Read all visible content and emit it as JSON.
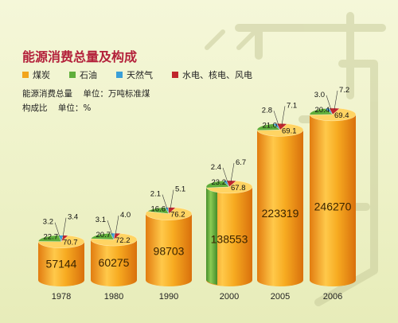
{
  "chart_data": {
    "type": "bar",
    "title": "能源消费总量及构成",
    "unit_note": "能源消费总量    单位：万吨标准煤",
    "ratio_note": "构成比    单位：%",
    "categories": [
      "1978",
      "1980",
      "1990",
      "2000",
      "2005",
      "2006"
    ],
    "values": [
      57144,
      60275,
      98703,
      138553,
      223319,
      246270
    ],
    "legend": [
      {
        "name": "煤炭",
        "color": "#f2a51c"
      },
      {
        "name": "石油",
        "color": "#5fae3b"
      },
      {
        "name": "天然气",
        "color": "#3a9fd8"
      },
      {
        "name": "水电、核电、风电",
        "color": "#c0262d"
      }
    ],
    "composition": [
      {
        "coal": "70.7",
        "oil": "22.7",
        "gas": "3.2",
        "hydro": "3.4"
      },
      {
        "coal": "72.2",
        "oil": "20.7",
        "gas": "3.1",
        "hydro": "4.0"
      },
      {
        "coal": "76.2",
        "oil": "16.6",
        "gas": "2.1",
        "hydro": "5.1"
      },
      {
        "coal": "67.8",
        "oil": "23.2",
        "gas": "2.4",
        "hydro": "6.7"
      },
      {
        "coal": "69.1",
        "oil": "21.0",
        "gas": "2.8",
        "hydro": "7.1"
      },
      {
        "coal": "69.4",
        "oil": "20.4",
        "gas": "3.0",
        "hydro": "7.2"
      }
    ]
  }
}
